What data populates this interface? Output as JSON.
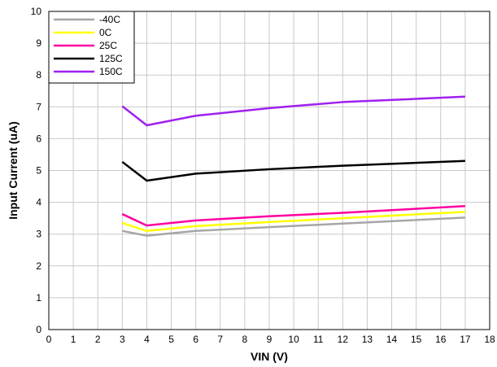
{
  "chart_data": {
    "type": "line",
    "xlabel": "VIN (V)",
    "ylabel": "Input Current (uA)",
    "xlim": [
      0,
      18
    ],
    "ylim": [
      0,
      10
    ],
    "x_ticks": [
      "0",
      "1",
      "2",
      "3",
      "4",
      "5",
      "6",
      "7",
      "8",
      "9",
      "10",
      "11",
      "12",
      "13",
      "14",
      "15",
      "16",
      "17",
      "18"
    ],
    "y_ticks": [
      "0",
      "1",
      "2",
      "3",
      "4",
      "5",
      "6",
      "7",
      "8",
      "9",
      "10"
    ],
    "grid": true,
    "legend_position": "top-left",
    "x": [
      3,
      4,
      6,
      9,
      12,
      17
    ],
    "series": [
      {
        "name": "-40C",
        "color": "#a6a6a6",
        "values": [
          3.1,
          2.95,
          3.1,
          3.22,
          3.33,
          3.52
        ]
      },
      {
        "name": "0C",
        "color": "#ffff00",
        "values": [
          3.35,
          3.1,
          3.25,
          3.38,
          3.5,
          3.7
        ]
      },
      {
        "name": "25C",
        "color": "#ff00a0",
        "values": [
          3.63,
          3.27,
          3.43,
          3.56,
          3.67,
          3.88
        ]
      },
      {
        "name": "125C",
        "color": "#000000",
        "values": [
          5.27,
          4.68,
          4.9,
          5.04,
          5.15,
          5.3
        ]
      },
      {
        "name": "150C",
        "color": "#a020f0",
        "values": [
          7.02,
          6.42,
          6.72,
          6.96,
          7.15,
          7.32
        ]
      }
    ]
  }
}
